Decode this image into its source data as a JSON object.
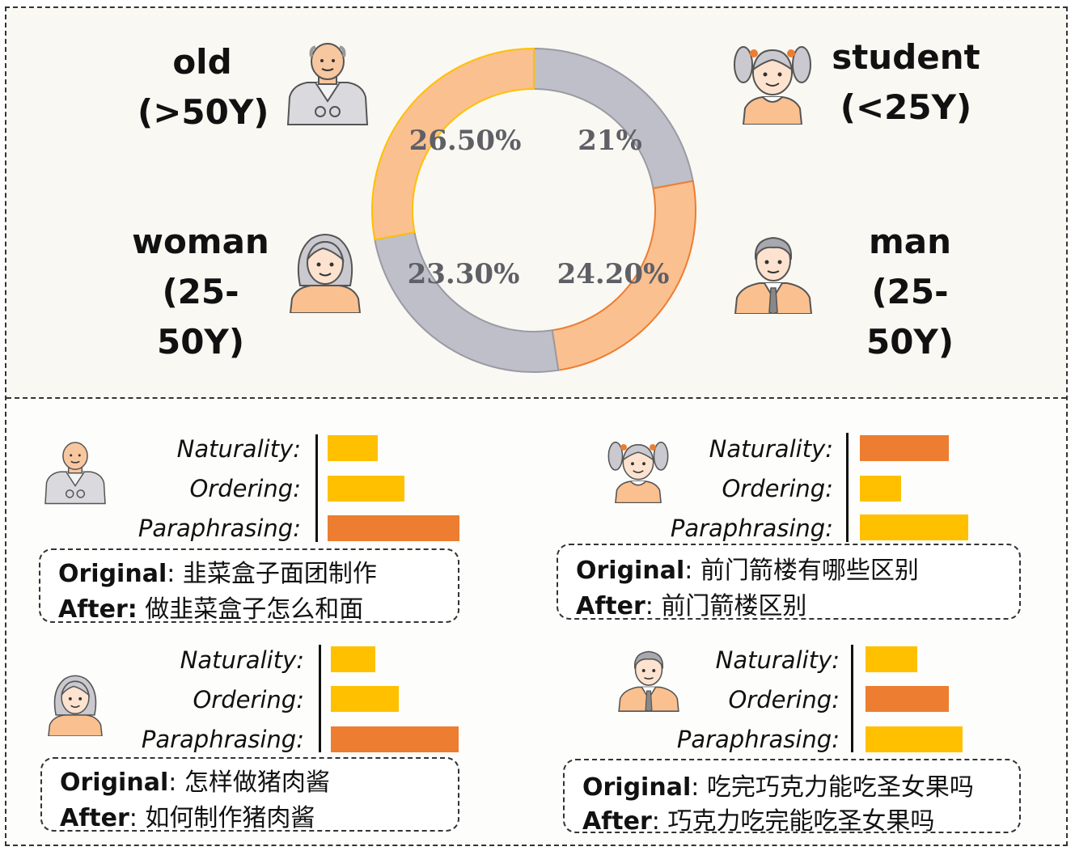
{
  "colors": {
    "orange": "#ED7D31",
    "yellow": "#FFC000",
    "peach": "#FAC090",
    "gray": "#BEBFC8"
  },
  "personas": {
    "old": {
      "name": "old",
      "range": "(>50Y)"
    },
    "student": {
      "name": "student",
      "range": "(<25Y)"
    },
    "woman": {
      "name": "woman",
      "range": "(25-50Y)"
    },
    "man": {
      "name": "man",
      "range": "(25-50Y)"
    }
  },
  "chart_data": [
    {
      "type": "pie",
      "variant": "donut",
      "categories": [
        "student (<25Y)",
        "man (25-50Y)",
        "woman (25-50Y)",
        "old (>50Y)"
      ],
      "values": [
        21,
        24.2,
        23.3,
        26.5
      ],
      "labels": [
        "21%",
        "24.20%",
        "23.30%",
        "26.50%"
      ],
      "colors": [
        "#BEBFC8",
        "#FAC090",
        "#BEBFC8",
        "#FAC090"
      ]
    },
    {
      "type": "bar",
      "orientation": "horizontal",
      "persona": "old",
      "categories": [
        "Naturality:",
        "Ordering:",
        "Paraphrasing:"
      ],
      "values": [
        0.38,
        0.58,
        1.0
      ],
      "colors": [
        "#FFC000",
        "#FFC000",
        "#ED7D31"
      ]
    },
    {
      "type": "bar",
      "orientation": "horizontal",
      "persona": "student",
      "categories": [
        "Naturality:",
        "Ordering:",
        "Paraphrasing:"
      ],
      "values": [
        0.82,
        0.38,
        1.0
      ],
      "colors": [
        "#ED7D31",
        "#FFC000",
        "#FFC000"
      ]
    },
    {
      "type": "bar",
      "orientation": "horizontal",
      "persona": "woman",
      "categories": [
        "Naturality:",
        "Ordering:",
        "Paraphrasing:"
      ],
      "values": [
        0.35,
        0.53,
        1.0
      ],
      "colors": [
        "#FFC000",
        "#FFC000",
        "#ED7D31"
      ]
    },
    {
      "type": "bar",
      "orientation": "horizontal",
      "persona": "man",
      "categories": [
        "Naturality:",
        "Ordering:",
        "Paraphrasing:"
      ],
      "values": [
        0.53,
        0.86,
        1.0
      ],
      "colors": [
        "#FFC000",
        "#ED7D31",
        "#FFC000"
      ]
    }
  ],
  "examples": {
    "old": {
      "original_key": "Original",
      "original_text": ": 韭菜盒子面团制作",
      "after_key": "After:",
      "after_text": " 做韭菜盒子怎么和面"
    },
    "student": {
      "original_key": "Original",
      "original_text": ": 前门箭楼有哪些区别",
      "after_key": "After",
      "after_text": ": 前门箭楼区别"
    },
    "woman": {
      "original_key": "Original",
      "original_text": ": 怎样做猪肉酱",
      "after_key": "After",
      "after_text": ": 如何制作猪肉酱"
    },
    "man": {
      "original_key": "Original",
      "original_text": ": 吃完巧克力能吃圣女果吗",
      "after_key": "After",
      "after_text": ": 巧克力吃完能吃圣女果吗"
    }
  }
}
